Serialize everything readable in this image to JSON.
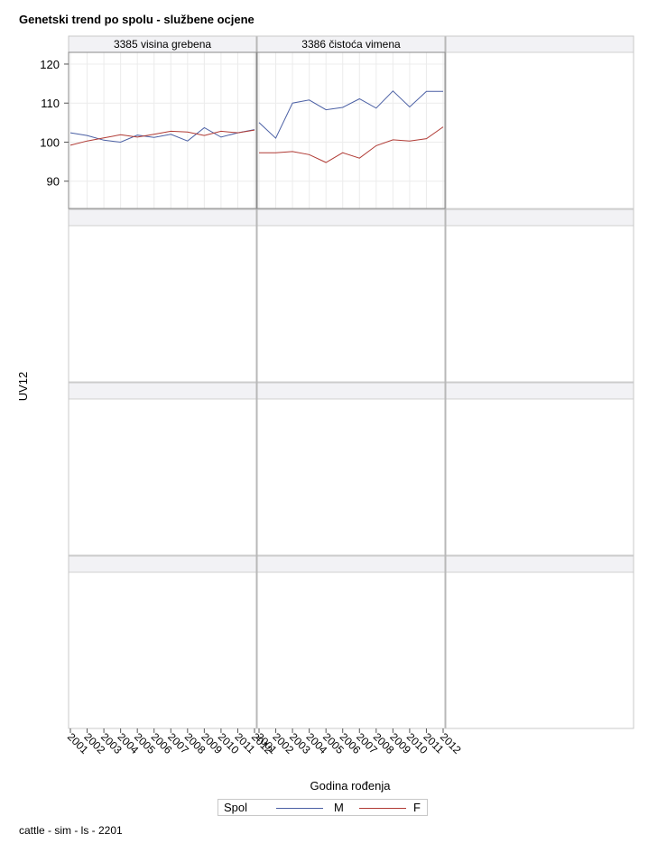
{
  "title": "Genetski trend po spolu - službene ocjene",
  "footnote": "cattle - sim - ls - 2201",
  "legend": {
    "title": "Spol",
    "items": [
      {
        "label": "M",
        "color": "#4a5fa4"
      },
      {
        "label": "F",
        "color": "#b03a34"
      }
    ]
  },
  "chart_data": {
    "type": "line",
    "title": "Genetski trend po spolu - službene ocjene",
    "xlabel": "Godina rođenja",
    "ylabel": "UV12",
    "ylim": [
      83,
      123
    ],
    "yticks": [
      90,
      100,
      110,
      120
    ],
    "x": [
      2001,
      2002,
      2003,
      2004,
      2005,
      2006,
      2007,
      2008,
      2009,
      2010,
      2011,
      2012
    ],
    "xtick_labels": [
      "2001",
      "2002",
      "2003",
      "2004",
      "2005",
      "2006",
      "2007",
      "2008",
      "2009",
      "2010",
      "2011",
      "2012"
    ],
    "grid": true,
    "legend_position": "bottom",
    "panels": [
      {
        "label": "3385 visina grebena",
        "series": [
          {
            "name": "M",
            "color": "#4a5fa4",
            "values": [
              102.4,
              101.7,
              100.5,
              100.0,
              101.8,
              101.2,
              102.0,
              100.3,
              103.7,
              101.3,
              102.4,
              103.2
            ]
          },
          {
            "name": "F",
            "color": "#b03a34",
            "values": [
              99.2,
              100.3,
              101.1,
              101.9,
              101.3,
              102.0,
              102.8,
              102.6,
              101.7,
              102.8,
              102.4,
              103.1
            ]
          }
        ]
      },
      {
        "label": "3386 čistoća vimena",
        "series": [
          {
            "name": "M",
            "color": "#4a5fa4",
            "values": [
              105.0,
              101.0,
              110.0,
              110.8,
              108.3,
              108.9,
              111.1,
              108.7,
              113.1,
              109.0,
              113.0,
              113.0
            ]
          },
          {
            "name": "F",
            "color": "#b03a34",
            "values": [
              97.3,
              97.3,
              97.6,
              96.8,
              94.8,
              97.3,
              95.9,
              99.1,
              100.6,
              100.3,
              100.9,
              103.9
            ]
          }
        ]
      }
    ]
  }
}
